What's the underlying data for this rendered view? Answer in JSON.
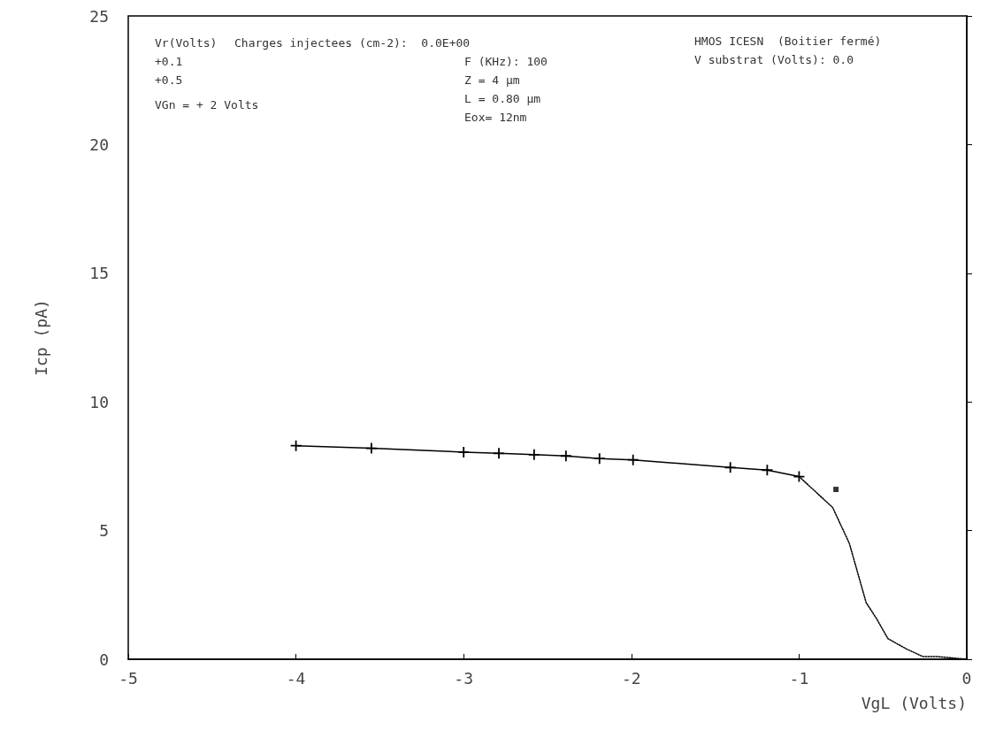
{
  "chart_data": {
    "type": "line",
    "xlabel": "VgL (Volts)",
    "ylabel": "Icp (pA)",
    "xlim": [
      -5,
      0
    ],
    "xticks": [
      -5,
      -4,
      -3,
      -2,
      -1,
      0
    ],
    "ylim": [
      0,
      25
    ],
    "yticks": [
      0,
      5,
      10,
      15,
      20,
      25
    ],
    "grid": false,
    "series": [
      {
        "color": "#000000",
        "marker": "cross",
        "line_style": "solid",
        "x": [
          -4,
          -3.55,
          -3,
          -2.79,
          -2.58,
          -2.39,
          -2.19,
          -1.99,
          -1.41,
          -1.19,
          -1.0
        ],
        "values": [
          8.3,
          8.2,
          8.05,
          8.0,
          7.95,
          7.9,
          7.8,
          7.75,
          7.45,
          7.35,
          7.1
        ]
      },
      {
        "color": "#000000",
        "marker": "none",
        "line_style": "dotted",
        "x": [
          -1.0,
          -0.8,
          -0.7,
          -0.6,
          -0.54,
          -0.47,
          -0.36,
          -0.26,
          -0.17,
          0
        ],
        "values": [
          7.1,
          5.9,
          4.5,
          2.2,
          1.6,
          0.8,
          0.4,
          0.1,
          0.1,
          0
        ]
      },
      {
        "type": "scatter",
        "color": "#000000",
        "marker": "square",
        "x": [
          -0.78
        ],
        "values": [
          6.6
        ]
      }
    ],
    "annotations": [
      "Vr(Volts)",
      "Charges injectees (cm-2):  0.0E+00",
      "+0.1",
      "+0.5",
      "VGn = + 2 Volts",
      "F (KHz): 100",
      "Z = 4 µm",
      "L = 0.80 µm",
      "Eox= 12nm",
      "HMOS ICESN  (Boitier fermé)",
      "V substrat (Volts): 0.0"
    ]
  }
}
